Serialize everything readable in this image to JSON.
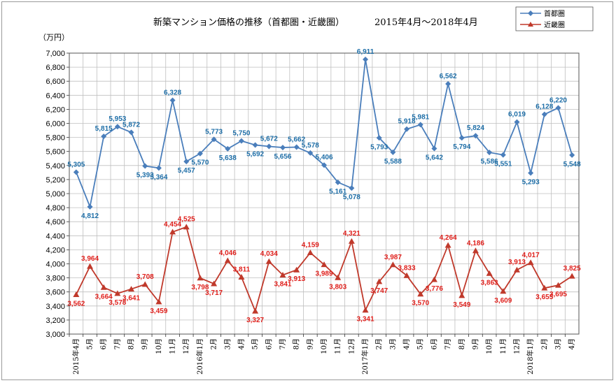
{
  "chart_data": {
    "type": "line",
    "title": "新築マンション価格の推移（首都圏・近畿圏）",
    "period": "2015年4月～2018年4月",
    "ylabel": "（万円）",
    "ylim": [
      3000,
      7000
    ],
    "ystep": 200,
    "grid": true,
    "legend_position": "top-right",
    "categories": [
      "2015年4月",
      "5月",
      "6月",
      "7月",
      "8月",
      "9月",
      "10月",
      "11月",
      "12月",
      "2016年1月",
      "2月",
      "3月",
      "4月",
      "5月",
      "6月",
      "7月",
      "8月",
      "9月",
      "10月",
      "11月",
      "12月",
      "2017年1月",
      "2月",
      "3月",
      "4月",
      "5月",
      "6月",
      "7月",
      "8月",
      "9月",
      "10月",
      "11月",
      "12月",
      "2018年1月",
      "2月",
      "3月",
      "4月"
    ],
    "series": [
      {
        "name": "首都圏",
        "color": "#4a7ebb",
        "label_color": "#1f6fa8",
        "marker": "diamond",
        "values": [
          5305,
          4812,
          5815,
          5953,
          5872,
          5393,
          5364,
          6328,
          5457,
          5570,
          5773,
          5638,
          5750,
          5692,
          5672,
          5656,
          5662,
          5578,
          5406,
          5161,
          5078,
          6911,
          5793,
          5588,
          5918,
          5981,
          5642,
          6562,
          5794,
          5824,
          5586,
          5551,
          6019,
          5293,
          6128,
          6220,
          5548
        ],
        "labels": [
          "5,305",
          "4,812",
          "5,815",
          "5,953",
          "5,872",
          "5,393",
          "5,364",
          "6,328",
          "5,457",
          "5,570",
          "5,773",
          "5,638",
          "5,750",
          "5,692",
          "5,672",
          "5,656",
          "5,662",
          "5,578",
          "5,406",
          "5,161",
          "5,078",
          "6,911",
          "5,793",
          "5,588",
          "5,918",
          "5,981",
          "5,642",
          "6,562",
          "5,794",
          "5,824",
          "5,586",
          "5,551",
          "6,019",
          "5,293",
          "6,128",
          "6,220",
          "5,548"
        ],
        "label_pos": [
          "a",
          "b",
          "a",
          "a",
          "a",
          "b",
          "b",
          "a",
          "b",
          "b",
          "a",
          "b",
          "a",
          "b",
          "a",
          "b",
          "a",
          "a",
          "a",
          "b",
          "b",
          "a",
          "b",
          "b",
          "a",
          "a",
          "b",
          "a",
          "b",
          "a",
          "b",
          "b",
          "a",
          "b",
          "a",
          "a",
          "b"
        ]
      },
      {
        "name": "近畿圏",
        "color": "#c0392b",
        "label_color": "#e0201c",
        "marker": "triangle",
        "values": [
          3562,
          3964,
          3664,
          3578,
          3641,
          3708,
          3459,
          4454,
          4525,
          3798,
          3717,
          4046,
          3811,
          3327,
          4034,
          3841,
          3913,
          4159,
          3989,
          3803,
          4321,
          3341,
          3747,
          3987,
          3833,
          3570,
          3776,
          4264,
          3549,
          4186,
          3863,
          3609,
          3913,
          4017,
          3655,
          3695,
          3825
        ],
        "labels": [
          "3,562",
          "3,964",
          "3,664",
          "3,578",
          "3,641",
          "3,708",
          "3,459",
          "4,454",
          "4,525",
          "3,798",
          "3,717",
          "4,046",
          "3,811",
          "3,327",
          "4,034",
          "3,841",
          "3,913",
          "4,159",
          "3,989",
          "3,803",
          "4,321",
          "3,341",
          "3,747",
          "3,987",
          "3,833",
          "3,570",
          "3,776",
          "4,264",
          "3,549",
          "4,186",
          "3,863",
          "3,609",
          "3,913",
          "4,017",
          "3,655",
          "3,695",
          "3,825"
        ],
        "label_pos": [
          "b",
          "a",
          "b",
          "b",
          "b",
          "a",
          "b",
          "a",
          "a",
          "b",
          "b",
          "a",
          "a",
          "b",
          "a",
          "b",
          "b",
          "a",
          "b",
          "b",
          "a",
          "b",
          "b",
          "a",
          "a",
          "b",
          "b",
          "a",
          "b",
          "a",
          "b",
          "b",
          "a",
          "a",
          "b",
          "b",
          "a"
        ]
      }
    ]
  }
}
